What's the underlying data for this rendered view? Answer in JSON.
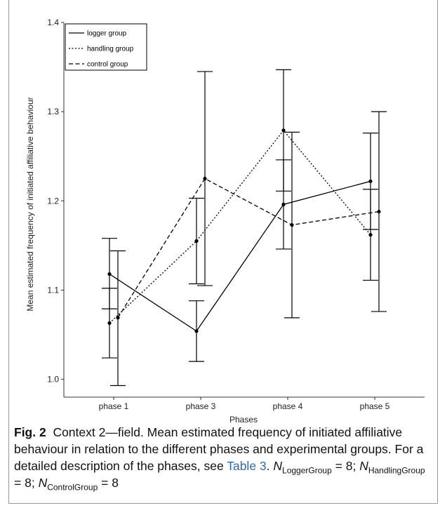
{
  "chart_data": {
    "type": "line",
    "xlabel": "Phases",
    "ylabel": "Mean estimated frequency of initiated affiliative behaviour",
    "categories": [
      "phase 1",
      "phase 3",
      "phase 4",
      "phase 5"
    ],
    "ylim": [
      0.98,
      1.4
    ],
    "yticks": [
      "1.0",
      "1.1",
      "1.2",
      "1.3",
      "1.4"
    ],
    "grid": false,
    "legend_position": "top-left",
    "series": [
      {
        "name": "logger group",
        "dash": "solid",
        "values": [
          1.118,
          1.054,
          1.196,
          1.222
        ],
        "lower": [
          1.079,
          1.02,
          1.146,
          1.168
        ],
        "upper": [
          1.158,
          1.088,
          1.246,
          1.276
        ]
      },
      {
        "name": "handling group",
        "dash": "dotted",
        "values": [
          1.063,
          1.155,
          1.279,
          1.162
        ],
        "lower": [
          1.024,
          1.107,
          1.211,
          1.111
        ],
        "upper": [
          1.102,
          1.203,
          1.347,
          1.213
        ]
      },
      {
        "name": "control group",
        "dash": "dashed",
        "values": [
          1.069,
          1.225,
          1.173,
          1.188
        ],
        "lower": [
          0.993,
          1.105,
          1.069,
          1.076
        ],
        "upper": [
          1.144,
          1.345,
          1.277,
          1.3
        ]
      }
    ],
    "colors": {
      "lines": "#000000",
      "axis": "#333333"
    }
  },
  "caption": {
    "fig_label": "Fig. 2",
    "text": "Context 2—field. Mean estimated frequency of initiated affiliative behaviour in relation to the different phases and experimental groups. For a detailed description of the phases, see",
    "table_ref": "Table 3",
    "n_logger_symbol": "N",
    "n_logger_sub": "LoggerGroup",
    "n_logger_value": "= 8;",
    "n_handling_symbol": "N",
    "n_handling_sub": "HandlingGroup",
    "n_handling_value": "= 8;",
    "n_control_symbol": "N",
    "n_control_sub": "ControlGroup",
    "n_control_value": "= 8"
  }
}
